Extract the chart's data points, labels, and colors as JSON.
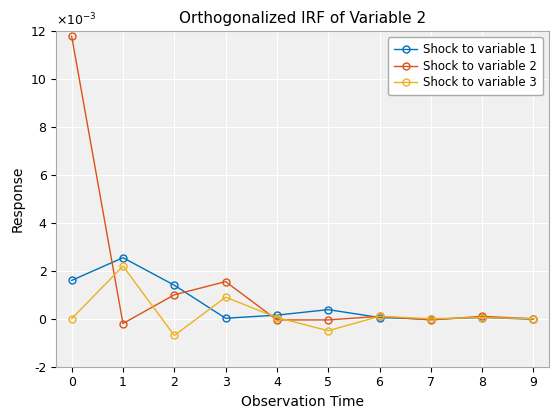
{
  "title": "Orthogonalized IRF of Variable 2",
  "xlabel": "Observation Time",
  "ylabel": "Response",
  "x": [
    0,
    1,
    2,
    3,
    4,
    5,
    6,
    7,
    8,
    9
  ],
  "shock1": [
    0.0016,
    0.00255,
    0.0014,
    2e-05,
    0.00015,
    0.00038,
    5e-05,
    -2e-05,
    5e-05,
    -2e-05
  ],
  "shock2": [
    0.0118,
    -0.0002,
    0.001,
    0.00155,
    -5e-05,
    -5e-05,
    0.0001,
    -5e-05,
    0.0001,
    0.0
  ],
  "shock3": [
    0.0,
    0.0022,
    -0.0007,
    0.0009,
    5e-05,
    -0.0005,
    0.0001,
    0.0,
    5e-05,
    0.0
  ],
  "color1": "#0072BD",
  "color2": "#D95319",
  "color3": "#EDB120",
  "ylim": [
    -0.002,
    0.012
  ],
  "xlim": [
    -0.3,
    9.3
  ],
  "legend_labels": [
    "Shock to variable 1",
    "Shock to variable 2",
    "Shock to variable 3"
  ],
  "ytick_vals": [
    -0.002,
    0.0,
    0.002,
    0.004,
    0.006,
    0.008,
    0.01,
    0.012
  ],
  "ytick_labels": [
    "-2",
    "0",
    "2",
    "4",
    "6",
    "8",
    "10",
    "12"
  ],
  "xticks": [
    0,
    1,
    2,
    3,
    4,
    5,
    6,
    7,
    8,
    9
  ],
  "bg_color": "#F0F0F0",
  "grid_color": "#FFFFFF",
  "title_fontsize": 11,
  "label_fontsize": 10,
  "tick_fontsize": 9,
  "legend_fontsize": 8.5,
  "marker_size": 5,
  "line_width": 1.0
}
